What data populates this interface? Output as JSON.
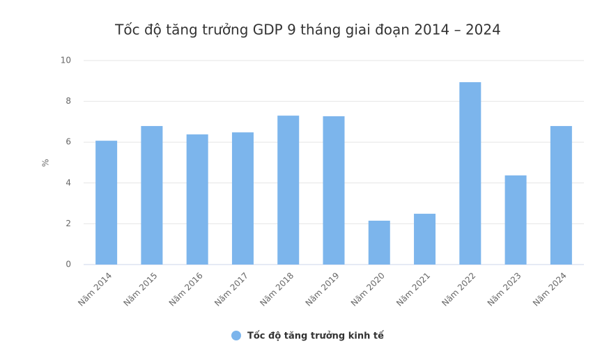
{
  "chart_data": {
    "type": "bar",
    "title": "Tốc độ tăng trưởng GDP 9 tháng giai đoạn 2014 – 2024",
    "y_label": "%",
    "categories": [
      "Năm 2014",
      "Năm 2015",
      "Năm 2016",
      "Năm 2017",
      "Năm 2018",
      "Năm 2019",
      "Năm 2020",
      "Năm 2021",
      "Năm 2022",
      "Năm 2023",
      "Năm 2024"
    ],
    "series": [
      {
        "name": "Tốc độ tăng trưởng kinh tế",
        "color": "#7cb5ec",
        "values": [
          6.07,
          6.79,
          6.38,
          6.48,
          7.3,
          7.27,
          2.15,
          2.49,
          8.94,
          4.37,
          6.79
        ]
      }
    ],
    "ylim": [
      0,
      10
    ],
    "yticks": [
      0,
      2,
      4,
      6,
      8,
      10
    ],
    "grid": true,
    "legend": "bottom"
  }
}
